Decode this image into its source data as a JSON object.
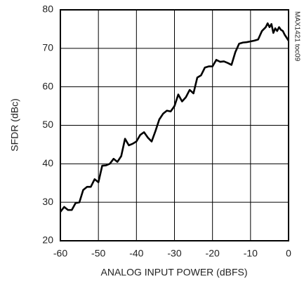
{
  "chart_data": {
    "type": "line",
    "xlabel": "ANALOG INPUT POWER (dBFS)",
    "ylabel": "SFDR (dBc)",
    "annotation": "MAX1421 toc09",
    "color": "#000000",
    "grid": true,
    "xlim": [
      -60,
      0
    ],
    "xticks": [
      -60,
      -50,
      -40,
      -30,
      -20,
      -10,
      0
    ],
    "ylim": [
      20,
      80
    ],
    "yticks": [
      20,
      30,
      40,
      50,
      60,
      70,
      80
    ],
    "x": [
      -60,
      -59,
      -58,
      -57,
      -56,
      -55,
      -54,
      -53,
      -52,
      -51,
      -50,
      -49,
      -48,
      -47,
      -46,
      -45,
      -44,
      -43,
      -42,
      -41,
      -40,
      -39,
      -38,
      -37,
      -36,
      -35,
      -34,
      -33,
      -32,
      -31,
      -30,
      -29,
      -28,
      -27,
      -26,
      -25,
      -24,
      -23,
      -22,
      -21,
      -20,
      -19,
      -18,
      -17,
      -16,
      -15,
      -14,
      -13,
      -12,
      -11,
      -10,
      -9,
      -8,
      -7,
      -6,
      -5.5,
      -5,
      -4.5,
      -4,
      -3.5,
      -3,
      -2.5,
      -2,
      -1.5,
      -1,
      0
    ],
    "values": [
      27.5,
      28.8,
      28,
      28,
      29.8,
      30,
      33.2,
      34,
      34,
      36,
      35.2,
      39.5,
      39.6,
      40,
      41.3,
      40.5,
      42,
      46.5,
      44.8,
      45.2,
      45.8,
      47.5,
      48.2,
      46.8,
      45.8,
      48.5,
      51.5,
      53,
      53.8,
      53.6,
      55,
      58,
      56.2,
      57.3,
      59.2,
      58.3,
      62.4,
      63,
      65,
      65.3,
      65.3,
      67,
      66.5,
      66.6,
      66.2,
      65.7,
      69,
      71.2,
      71.5,
      71.6,
      71.8,
      72,
      72.3,
      74.5,
      75.5,
      76.5,
      75.5,
      76.3,
      74,
      75.2,
      74.5,
      75.5,
      74.8,
      74.5,
      73.5,
      72
    ]
  }
}
